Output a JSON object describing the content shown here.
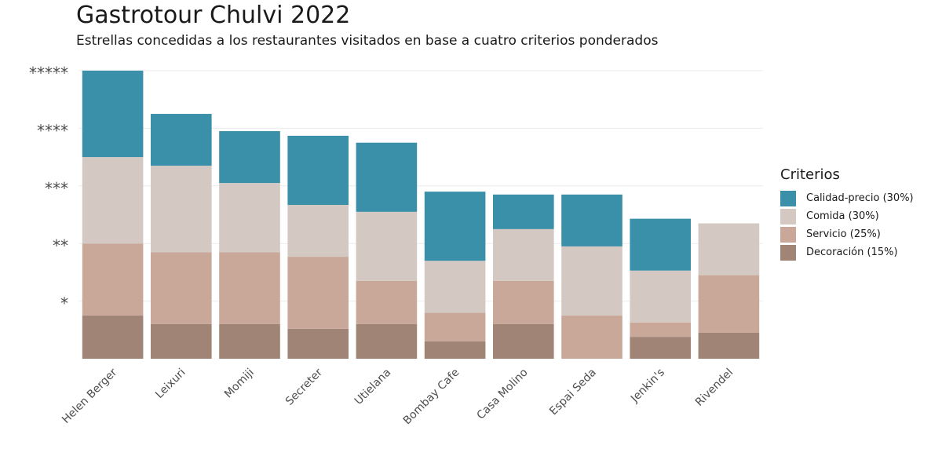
{
  "title": "Gastrotour Chulvi 2022",
  "subtitle": "Estrellas concedidas a los restaurantes visitados en base a cuatro criterios ponderados",
  "chart_data": {
    "type": "bar",
    "stacked": true,
    "categories": [
      "Helen Berger",
      "Leixuri",
      "Momiji",
      "Secreter",
      "Utielana",
      "Bombay Cafe",
      "Casa Molino",
      "Espai Seda",
      "Jenkin's",
      "Rivendel"
    ],
    "series": [
      {
        "name": "Decoración (15%)",
        "color": "#a08576",
        "values": [
          0.75,
          0.6,
          0.6,
          0.52,
          0.6,
          0.3,
          0.6,
          0,
          0.38,
          0.45
        ]
      },
      {
        "name": "Servicio (25%)",
        "color": "#c9a89a",
        "values": [
          1.25,
          1.25,
          1.25,
          1.25,
          0.75,
          0.5,
          0.75,
          0.75,
          0.25,
          1.0
        ]
      },
      {
        "name": "Comida (30%)",
        "color": "#d4c8c2",
        "values": [
          1.5,
          1.5,
          1.2,
          0.9,
          1.2,
          0.9,
          0.9,
          1.2,
          0.9,
          0.9
        ]
      },
      {
        "name": "Calidad-precio (30%)",
        "color": "#3a8fa9",
        "values": [
          1.5,
          0.9,
          0.9,
          1.2,
          1.2,
          1.2,
          0.6,
          0.9,
          0.9,
          0
        ]
      }
    ],
    "ylim": [
      0,
      5
    ],
    "yticks": [
      1,
      2,
      3,
      4,
      5
    ],
    "ytick_labels": [
      "*",
      "**",
      "***",
      "****",
      "*****"
    ],
    "legend": {
      "title": "Criterios",
      "position": "right",
      "entries": [
        "Calidad-precio (30%)",
        "Comida (30%)",
        "Servicio (25%)",
        "Decoración (15%)"
      ]
    },
    "grid": true
  }
}
